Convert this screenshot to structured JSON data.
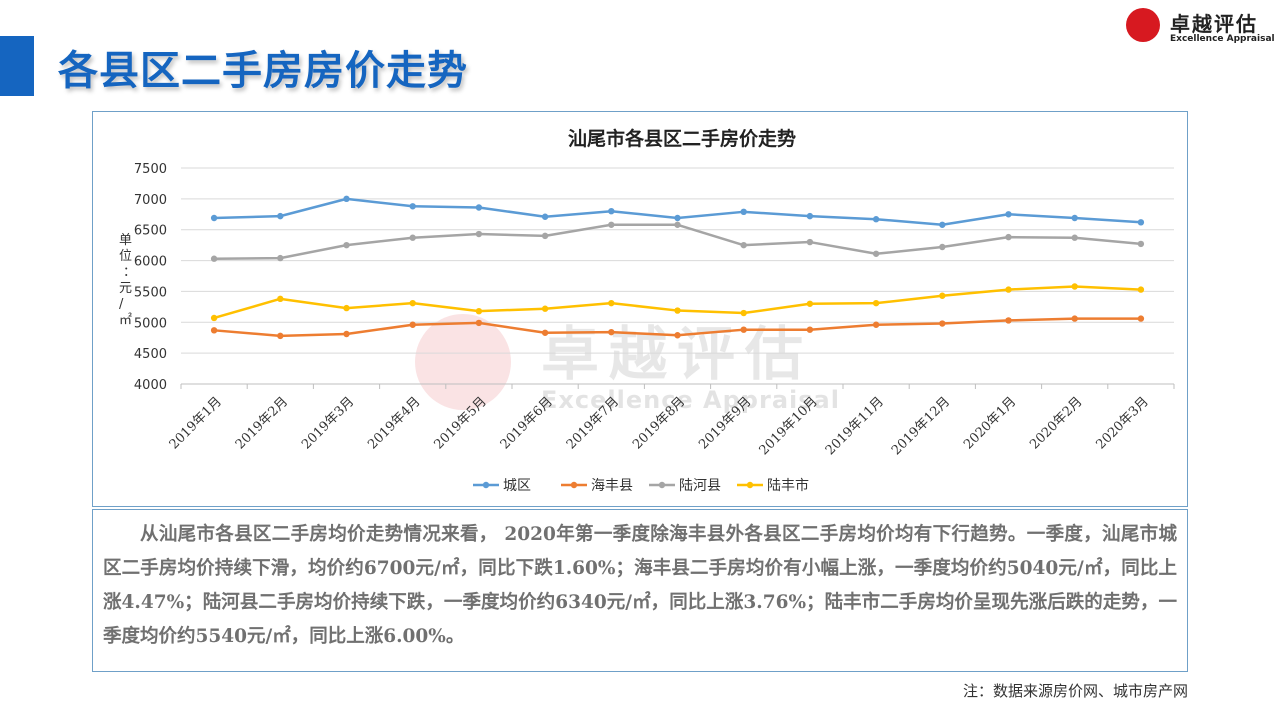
{
  "page": {
    "title": "各县区二手房房价走势"
  },
  "logo": {
    "cn": "卓越评估",
    "en": "Excellence Appraisal"
  },
  "watermark": {
    "cn": "卓越评估",
    "en": "Excellence Appraisal"
  },
  "chart_data": {
    "type": "line",
    "title": "汕尾市各县区二手房价走势",
    "ylabel": "单位：元/㎡",
    "ylim": [
      4000,
      7500
    ],
    "yticks": [
      4000,
      4500,
      5000,
      5500,
      6000,
      6500,
      7000,
      7500
    ],
    "grid": true,
    "legend": "bottom",
    "categories": [
      "2019年1月",
      "2019年2月",
      "2019年3月",
      "2019年4月",
      "2019年5月",
      "2019年6月",
      "2019年7月",
      "2019年8月",
      "2019年9月",
      "2019年10月",
      "2019年11月",
      "2019年12月",
      "2020年1月",
      "2020年2月",
      "2020年3月"
    ],
    "series": [
      {
        "name": "城区",
        "color": "#5b9bd5",
        "values": [
          6690,
          6720,
          7000,
          6880,
          6860,
          6710,
          6800,
          6690,
          6790,
          6720,
          6670,
          6580,
          6750,
          6690,
          6620
        ]
      },
      {
        "name": "海丰县",
        "color": "#ed7d31",
        "values": [
          4870,
          4780,
          4810,
          4960,
          4990,
          4830,
          4840,
          4790,
          4880,
          4880,
          4960,
          4980,
          5030,
          5060,
          5060
        ]
      },
      {
        "name": "陆河县",
        "color": "#a5a5a5",
        "values": [
          6030,
          6040,
          6250,
          6370,
          6430,
          6400,
          6580,
          6580,
          6250,
          6300,
          6110,
          6220,
          6380,
          6370,
          6270
        ]
      },
      {
        "name": "陆丰市",
        "color": "#ffc000",
        "values": [
          5070,
          5380,
          5230,
          5310,
          5180,
          5220,
          5310,
          5190,
          5150,
          5300,
          5310,
          5430,
          5530,
          5580,
          5530
        ]
      }
    ]
  },
  "summary": "从汕尾市各县区二手房均价走势情况来看， 2020年第一季度除海丰县外各县区二手房均价均有下行趋势。一季度，汕尾市城区二手房均价持续下滑，均价约6700元/㎡，同比下跌1.60%；海丰县二手房均价有小幅上涨，一季度均价约5040元/㎡，同比上涨4.47%；陆河县二手房均价持续下跌，一季度均价约6340元/㎡，同比上涨3.76%；陆丰市二手房均价呈现先涨后跌的走势，一季度均价约5540元/㎡，同比上涨6.00%。",
  "note": "注：数据来源房价网、城市房产网"
}
